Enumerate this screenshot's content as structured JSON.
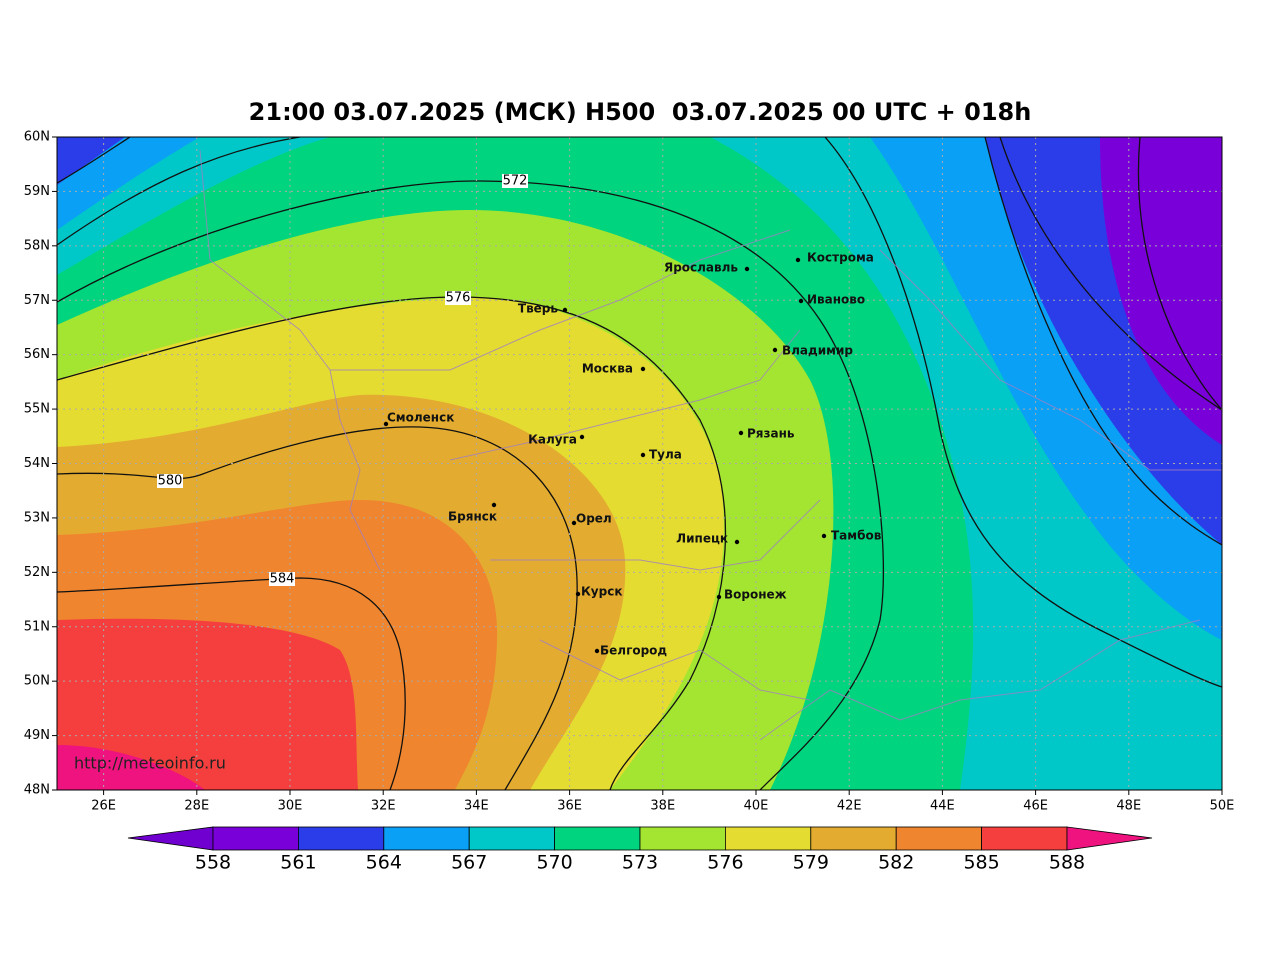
{
  "title": "21:00 03.07.2025 (МСК) H500  03.07.2025 00 UTC + 018h",
  "lat_labels": [
    "60N",
    "59N",
    "58N",
    "57N",
    "56N",
    "55N",
    "54N",
    "53N",
    "52N",
    "51N",
    "50N",
    "49N",
    "48N"
  ],
  "lon_labels": [
    "26E",
    "28E",
    "30E",
    "32E",
    "34E",
    "36E",
    "38E",
    "40E",
    "42E",
    "44E",
    "46E",
    "48E",
    "50E"
  ],
  "contour_labels": [
    572,
    576,
    580,
    584
  ],
  "cities": [
    "Кострома",
    "Ярославль",
    "Иваново",
    "Тверь",
    "Владимир",
    "Москва",
    "Смоленск",
    "Рязань",
    "Калуга",
    "Тула",
    "Брянск",
    "Орел",
    "Липецк",
    "Тамбов",
    "Курск",
    "Воронеж",
    "Белгород"
  ],
  "colorbar": [
    558,
    561,
    564,
    567,
    570,
    573,
    576,
    579,
    582,
    585,
    588
  ],
  "watermark": "http://meteoinfo.ru"
}
